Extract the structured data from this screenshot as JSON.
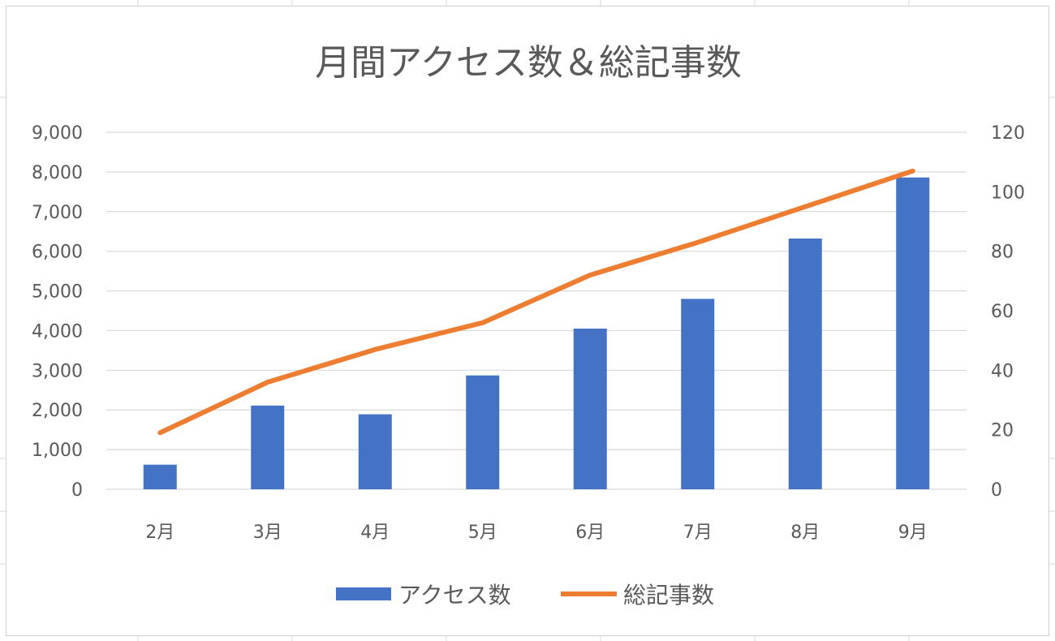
{
  "chart_data": {
    "type": "bar",
    "title": "月間アクセス数＆総記事数",
    "categories": [
      "2月",
      "3月",
      "4月",
      "5月",
      "6月",
      "7月",
      "8月",
      "9月"
    ],
    "series": [
      {
        "name": "アクセス数",
        "type": "bar",
        "axis": "left",
        "color": "#4472c4",
        "values": [
          620,
          2110,
          1890,
          2870,
          4050,
          4800,
          6320,
          7860
        ]
      },
      {
        "name": "総記事数",
        "type": "line",
        "axis": "right",
        "color": "#ed7d31",
        "values": [
          19,
          36,
          47,
          56,
          72,
          83,
          95,
          107
        ]
      }
    ],
    "y_left": {
      "range": [
        0,
        9000
      ],
      "ticks": [
        0,
        1000,
        2000,
        3000,
        4000,
        5000,
        6000,
        7000,
        8000,
        9000
      ],
      "tick_labels": [
        "0",
        "1,000",
        "2,000",
        "3,000",
        "4,000",
        "5,000",
        "6,000",
        "7,000",
        "8,000",
        "9,000"
      ]
    },
    "y_right": {
      "range": [
        0,
        120
      ],
      "ticks": [
        0,
        20,
        40,
        60,
        80,
        100,
        120
      ],
      "tick_labels": [
        "0",
        "20",
        "40",
        "60",
        "80",
        "100",
        "120"
      ]
    },
    "grid": true,
    "legend": "bottom"
  }
}
